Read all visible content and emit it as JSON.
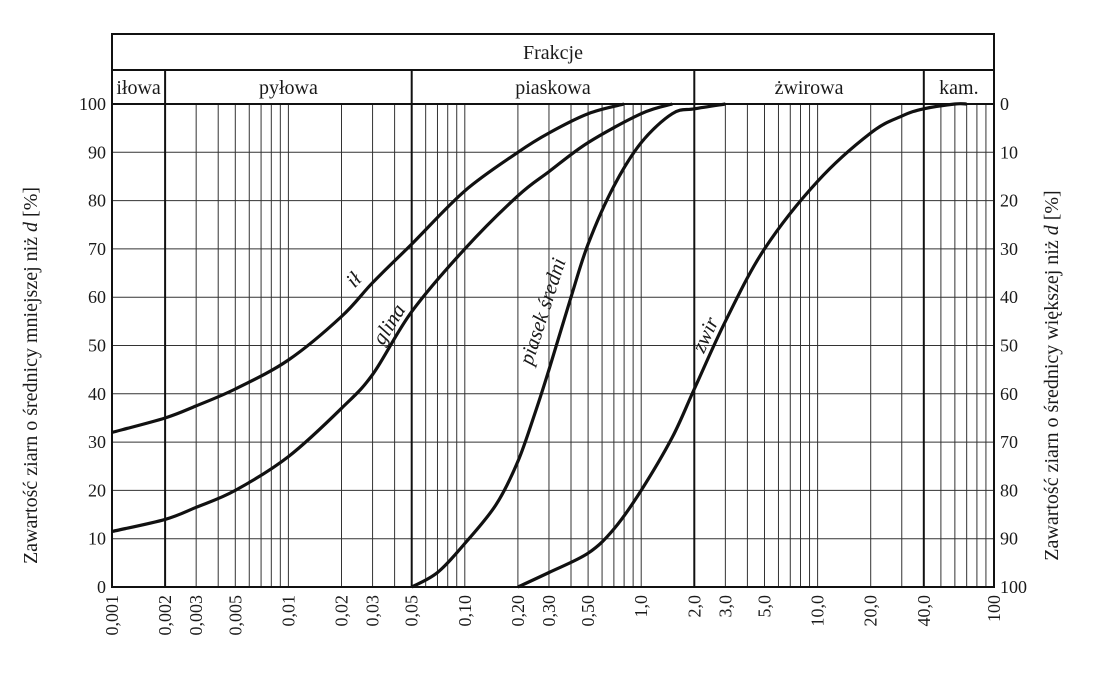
{
  "chart_data": {
    "type": "line",
    "title": "Frakcje",
    "xscale": "log",
    "xlim": [
      0.001,
      100
    ],
    "ylim": [
      0,
      100
    ],
    "grid": true,
    "ylabel_left": [
      "Zawartość ziarn o średnicy mniejszej niż ",
      "d",
      " [%]"
    ],
    "ylabel_right": [
      "Zawartość ziarn o średnicy większej niż ",
      "d",
      " [%]"
    ],
    "fractions": [
      {
        "label": "iłowa",
        "from": 0.001,
        "to": 0.002
      },
      {
        "label": "pyłowa",
        "from": 0.002,
        "to": 0.05
      },
      {
        "label": "piaskowa",
        "from": 0.05,
        "to": 2.0
      },
      {
        "label": "żwirowa",
        "from": 2.0,
        "to": 40.0
      },
      {
        "label": "kam.",
        "from": 40.0,
        "to": 100
      }
    ],
    "x_ticks": [
      {
        "v": 0.001,
        "l": "0,001"
      },
      {
        "v": 0.002,
        "l": "0,002"
      },
      {
        "v": 0.003,
        "l": "0,003"
      },
      {
        "v": 0.005,
        "l": "0,005"
      },
      {
        "v": 0.01,
        "l": "0,01"
      },
      {
        "v": 0.02,
        "l": "0,02"
      },
      {
        "v": 0.03,
        "l": "0,03"
      },
      {
        "v": 0.05,
        "l": "0,05"
      },
      {
        "v": 0.1,
        "l": "0,10"
      },
      {
        "v": 0.2,
        "l": "0,20"
      },
      {
        "v": 0.3,
        "l": "0,30"
      },
      {
        "v": 0.5,
        "l": "0,50"
      },
      {
        "v": 1.0,
        "l": "1,0"
      },
      {
        "v": 2.0,
        "l": "2,0"
      },
      {
        "v": 3.0,
        "l": "3,0"
      },
      {
        "v": 5.0,
        "l": "5,0"
      },
      {
        "v": 10.0,
        "l": "10,0"
      },
      {
        "v": 20.0,
        "l": "20,0"
      },
      {
        "v": 40.0,
        "l": "40,0"
      },
      {
        "v": 100,
        "l": "100"
      }
    ],
    "y_ticks_left": [
      "0",
      "10",
      "20",
      "30",
      "40",
      "50",
      "60",
      "70",
      "80",
      "90",
      "100"
    ],
    "y_ticks_right": [
      "100",
      "90",
      "80",
      "70",
      "60",
      "50",
      "40",
      "30",
      "20",
      "10",
      "0"
    ],
    "series": [
      {
        "name": "ił",
        "label_at": [
          0.025,
          61
        ],
        "x": [
          0.001,
          0.002,
          0.003,
          0.005,
          0.01,
          0.02,
          0.03,
          0.05,
          0.1,
          0.2,
          0.3,
          0.5,
          0.8
        ],
        "y": [
          32,
          35,
          37.5,
          41,
          47,
          56,
          63,
          71,
          82,
          90,
          94,
          98,
          100
        ]
      },
      {
        "name": "glina",
        "label_at": [
          0.04,
          52
        ],
        "x": [
          0.001,
          0.002,
          0.003,
          0.005,
          0.01,
          0.02,
          0.03,
          0.05,
          0.1,
          0.2,
          0.3,
          0.5,
          1.0,
          1.5
        ],
        "y": [
          11.5,
          14,
          16.5,
          20,
          27,
          37,
          44,
          57,
          70,
          81,
          86,
          92,
          98,
          100
        ]
      },
      {
        "name": "piasek średni",
        "label_at": [
          0.3,
          55
        ],
        "x": [
          0.05,
          0.07,
          0.1,
          0.15,
          0.2,
          0.25,
          0.3,
          0.4,
          0.5,
          0.7,
          1.0,
          1.5,
          2.0,
          3.0
        ],
        "y": [
          0,
          3,
          9,
          17,
          26,
          36,
          45,
          60,
          71,
          83,
          92,
          98,
          99,
          100
        ]
      },
      {
        "name": "żwir",
        "label_at": [
          2.5,
          50
        ],
        "x": [
          0.2,
          0.3,
          0.5,
          0.7,
          1.0,
          1.5,
          2.0,
          3.0,
          5.0,
          10.0,
          20.0,
          30.0,
          40.0,
          60.0,
          70.0
        ],
        "y": [
          0,
          3,
          7,
          12,
          20,
          31,
          41,
          55,
          70,
          84,
          94,
          97.5,
          99,
          100,
          100
        ]
      }
    ]
  }
}
